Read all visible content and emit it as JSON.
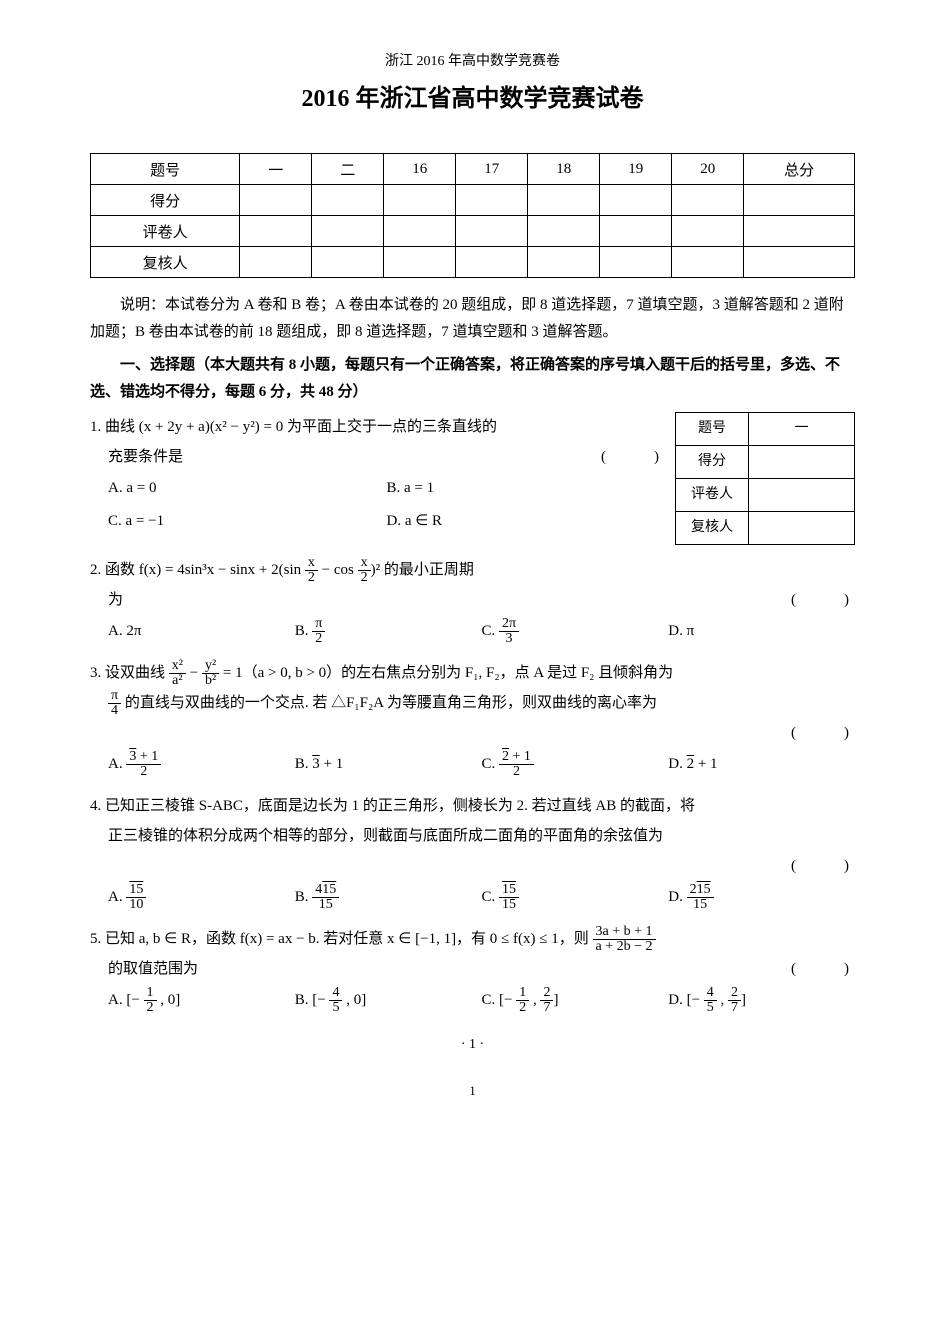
{
  "header_small": "浙江 2016 年高中数学竞赛卷",
  "title": "2016 年浙江省高中数学竞赛试卷",
  "score_table": {
    "headers": [
      "题号",
      "一",
      "二",
      "16",
      "17",
      "18",
      "19",
      "20",
      "总分"
    ],
    "rows": [
      "得分",
      "评卷人",
      "复核人"
    ]
  },
  "instructions": "说明：本试卷分为 A 卷和 B 卷；A 卷由本试卷的 20 题组成，即 8 道选择题，7 道填空题，3 道解答题和 2 道附加题；B 卷由本试卷的前 18 题组成，即 8 道选择题，7 道填空题和 3 道解答题。",
  "section1_title": "一、选择题（本大题共有 8 小题，每题只有一个正确答案，将正确答案的序号填入题干后的括号里，多选、不选、错选均不得分，每题 6 分，共 48 分）",
  "side_table_rows": [
    "题号",
    "得分",
    "评卷人",
    "复核人"
  ],
  "side_table_val": "一",
  "q1": {
    "stem1": "1. 曲线 (x + 2y + a)(x² − y²) = 0 为平面上交于一点的三条直线的",
    "stem2": "充要条件是",
    "optA": "A. a = 0",
    "optB": "B. a = 1",
    "optC": "C. a = −1",
    "optD": "D. a ∈ R"
  },
  "q2": {
    "stem_pre": "2. 函数 f(x) = 4sin³x − sinx + 2",
    "stem_post": " 的最小正周期",
    "stem_paren_inner1": "sin ",
    "stem_paren_inner2": " − cos ",
    "line2": "为",
    "optA": "A. 2π",
    "optD": "D. π"
  },
  "q3": {
    "stem_pre": "3. 设双曲线 ",
    "stem_mid": " = 1（a > 0, b > 0）的左右焦点分别为 F₁, F₂，点 A 是过 F₂ 且倾斜角为",
    "line2_pre": "",
    "line2_post": " 的直线与双曲线的一个交点. 若 △F₁F₂A 为等腰直角三角形，则双曲线的离心率为"
  },
  "q4": {
    "stem1": "4. 已知正三棱锥 S-ABC，底面是边长为 1 的正三角形，侧棱长为 2. 若过直线 AB 的截面，将",
    "stem2": "正三棱锥的体积分成两个相等的部分，则截面与底面所成二面角的平面角的余弦值为"
  },
  "q5": {
    "stem1_pre": "5. 已知 a, b ∈ R，函数 f(x) = ax − b. 若对任意 x ∈ [−1, 1]，有 0 ≤ f(x) ≤ 1，则 ",
    "stem2": "的取值范围为"
  },
  "page_num": "· 1 ·",
  "footer_num": "1",
  "paren": "(　　)"
}
